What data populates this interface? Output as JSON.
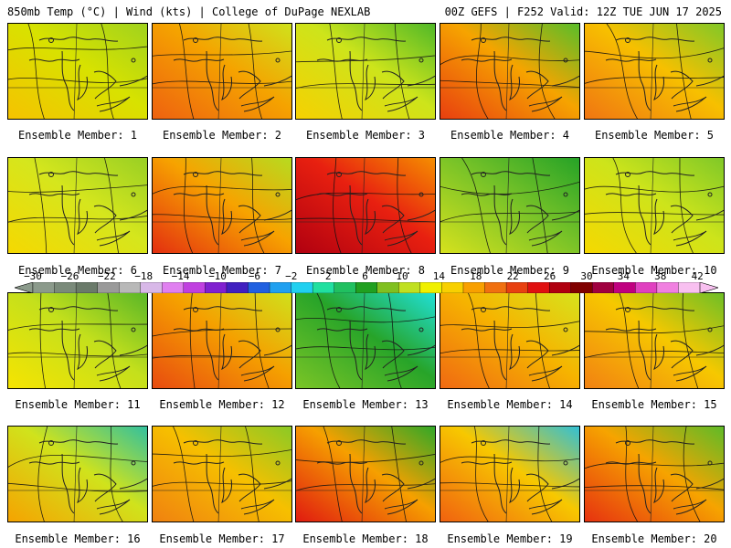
{
  "header": {
    "left": "850mb Temp (°C) | Wind (kts) | College of DuPage NEXLAB",
    "right": "00Z GEFS | F252 Valid: 12Z TUE JUN 17 2025"
  },
  "colorbar": {
    "ticks": [
      "−30",
      "−26",
      "−22",
      "−18",
      "−14",
      "−10",
      "−6",
      "−2",
      "2",
      "6",
      "10",
      "14",
      "18",
      "22",
      "26",
      "30",
      "34",
      "38",
      "42"
    ],
    "colors": [
      "#8b9a8b",
      "#7a8a7a",
      "#6a7a6a",
      "#9a9a9a",
      "#b8b8b8",
      "#d8b8e8",
      "#e080f0",
      "#c040e0",
      "#8020d0",
      "#4020c0",
      "#2060e0",
      "#20a0f0",
      "#20d0f0",
      "#20e0a0",
      "#20c060",
      "#20a020",
      "#80c020",
      "#c0e020",
      "#f0f000",
      "#f8d000",
      "#f8a000",
      "#f07010",
      "#e84010",
      "#e01010",
      "#b00010",
      "#800000",
      "#a00040",
      "#c00080",
      "#e040c0",
      "#f080e0",
      "#f8c0f0"
    ]
  },
  "members": [
    {
      "label": "Ensemble Member: 1",
      "palette": [
        "#f6c200",
        "#d8e200",
        "#9fd21e"
      ],
      "warm": 0.62
    },
    {
      "label": "Ensemble Member: 2",
      "palette": [
        "#ee6010",
        "#f5a300",
        "#cfe31c"
      ],
      "warm": 0.78
    },
    {
      "label": "Ensemble Member: 3",
      "palette": [
        "#f7d000",
        "#cde41b",
        "#4fb828"
      ],
      "warm": 0.55
    },
    {
      "label": "Ensemble Member: 4",
      "palette": [
        "#e83d10",
        "#f6a400",
        "#57be2a"
      ],
      "warm": 0.82
    },
    {
      "label": "Ensemble Member: 5",
      "palette": [
        "#f07412",
        "#f7c000",
        "#80c828"
      ],
      "warm": 0.72
    },
    {
      "label": "Ensemble Member: 6",
      "palette": [
        "#f6d800",
        "#d5e61d",
        "#98cf24"
      ],
      "warm": 0.5
    },
    {
      "label": "Ensemble Member: 7",
      "palette": [
        "#e32d10",
        "#f7a300",
        "#b6dc20"
      ],
      "warm": 0.8
    },
    {
      "label": "Ensemble Member: 8",
      "palette": [
        "#b00010",
        "#e82010",
        "#f59000"
      ],
      "warm": 0.95
    },
    {
      "label": "Ensemble Member: 9",
      "palette": [
        "#d8e21d",
        "#76c228",
        "#25a227"
      ],
      "warm": 0.35
    },
    {
      "label": "Ensemble Member: 10",
      "palette": [
        "#f6d800",
        "#cde41b",
        "#7fc828"
      ],
      "warm": 0.45
    },
    {
      "label": "Ensemble Member: 11",
      "palette": [
        "#f7e400",
        "#c4e01c",
        "#58b628"
      ],
      "warm": 0.42
    },
    {
      "label": "Ensemble Member: 12",
      "palette": [
        "#e84a10",
        "#f5a000",
        "#cfe21c"
      ],
      "warm": 0.8
    },
    {
      "label": "Ensemble Member: 13",
      "palette": [
        "#7cc526",
        "#27a429",
        "#20e0d8"
      ],
      "warm": 0.25
    },
    {
      "label": "Ensemble Member: 14",
      "palette": [
        "#f06812",
        "#f6b400",
        "#d6e41d"
      ],
      "warm": 0.68
    },
    {
      "label": "Ensemble Member: 15",
      "palette": [
        "#f28012",
        "#f6c800",
        "#6cbf27"
      ],
      "warm": 0.62
    },
    {
      "label": "Ensemble Member: 16",
      "palette": [
        "#f6a200",
        "#d0e31c",
        "#30c0a0"
      ],
      "warm": 0.55
    },
    {
      "label": "Ensemble Member: 17",
      "palette": [
        "#f08010",
        "#f6c000",
        "#89ca26"
      ],
      "warm": 0.65
    },
    {
      "label": "Ensemble Member: 18",
      "palette": [
        "#e01810",
        "#f6a000",
        "#2ea828"
      ],
      "warm": 0.75
    },
    {
      "label": "Ensemble Member: 19",
      "palette": [
        "#f06010",
        "#f7c800",
        "#2fc0d8"
      ],
      "warm": 0.6
    },
    {
      "label": "Ensemble Member: 20",
      "palette": [
        "#e63010",
        "#f6a400",
        "#5dbb28"
      ],
      "warm": 0.78
    }
  ]
}
